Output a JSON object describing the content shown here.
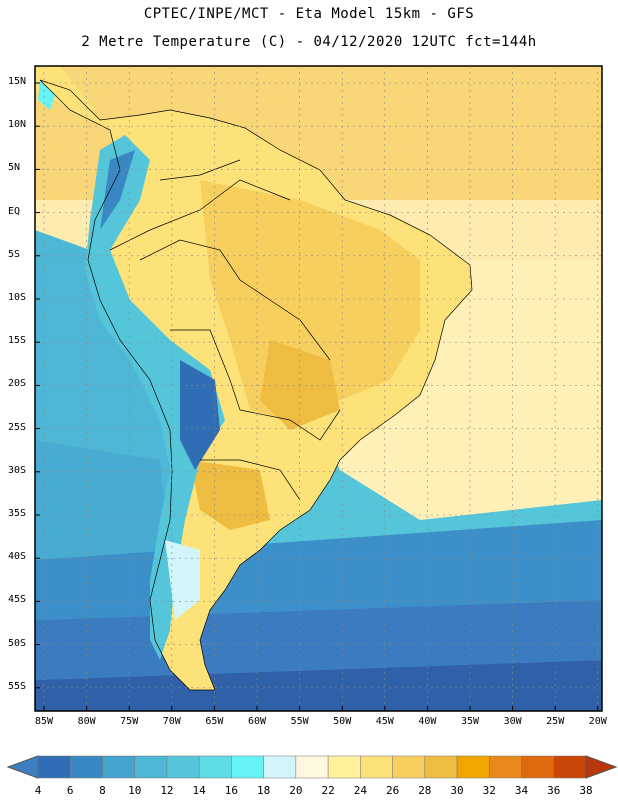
{
  "header": {
    "title_line1": "CPTEC/INPE/MCT  -   Eta Model 15km  -  GFS",
    "title_line2": "2 Metre Temperature (C) - 04/12/2020 12UTC fct=144h"
  },
  "axes": {
    "lat_labels": [
      "15N",
      "10N",
      "5N",
      "EQ",
      "5S",
      "10S",
      "15S",
      "20S",
      "25S",
      "30S",
      "35S",
      "40S",
      "45S",
      "50S",
      "55S"
    ],
    "lon_labels": [
      "85W",
      "80W",
      "75W",
      "70W",
      "65W",
      "60W",
      "55W",
      "50W",
      "45W",
      "40W",
      "35W",
      "30W",
      "25W",
      "20W"
    ]
  },
  "colorbar": {
    "values": [
      "4",
      "6",
      "8",
      "10",
      "12",
      "14",
      "16",
      "18",
      "20",
      "22",
      "24",
      "26",
      "28",
      "30",
      "32",
      "34",
      "36",
      "38"
    ],
    "colors": [
      "#3b7fc0",
      "#2f6db4",
      "#3a88c3",
      "#44a3cf",
      "#4fb7d6",
      "#55c5da",
      "#5fdbe6",
      "#66f3f6",
      "#d2f5fa",
      "#fff8e0",
      "#fff29a",
      "#fde27a",
      "#f6cf5e",
      "#efbc42",
      "#f0a500",
      "#e9891c",
      "#de6a10",
      "#c94606",
      "#b8360a"
    ]
  },
  "map": {
    "ocean_colors": [
      "#3060a8",
      "#3b7cc0",
      "#3c8fc8",
      "#47abd2",
      "#55c6da"
    ],
    "land_colors": [
      "#fde27a",
      "#f6cf5e",
      "#efbc42",
      "#fff29a",
      "#fff8e0"
    ],
    "andes_colors": [
      "#2f6db4",
      "#3a88c3",
      "#66f3f6",
      "#d2f5fa"
    ],
    "atlantic_tropical_color": "#f9d778"
  }
}
